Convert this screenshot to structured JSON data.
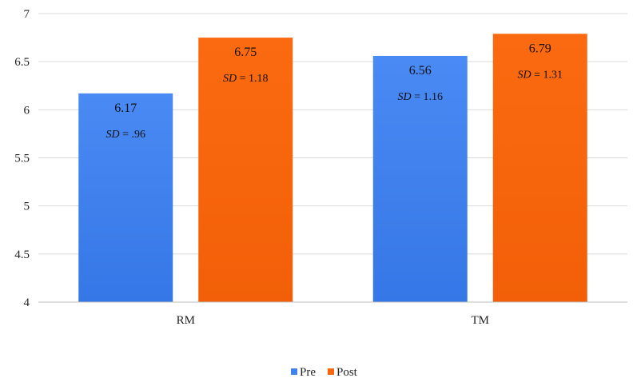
{
  "chart_data": {
    "type": "bar",
    "categories": [
      "RM",
      "TM"
    ],
    "series": [
      {
        "name": "Pre",
        "values": [
          6.17,
          6.56
        ],
        "labels": [
          "6.17",
          "6.56"
        ],
        "sd_labels": [
          "= .96",
          "= 1.16"
        ],
        "color": "#3f82ee"
      },
      {
        "name": "Post",
        "values": [
          6.75,
          6.79
        ],
        "labels": [
          "6.75",
          "6.79"
        ],
        "sd_labels": [
          "= 1.18",
          "= 1.31"
        ],
        "color": "#f9650c"
      }
    ],
    "sd_prefix": "SD",
    "ylim": [
      4,
      7
    ],
    "yticks": [
      "4",
      "4.5",
      "5",
      "5.5",
      "6",
      "6.5",
      "7"
    ],
    "grid": true,
    "legend_position": "bottom"
  }
}
